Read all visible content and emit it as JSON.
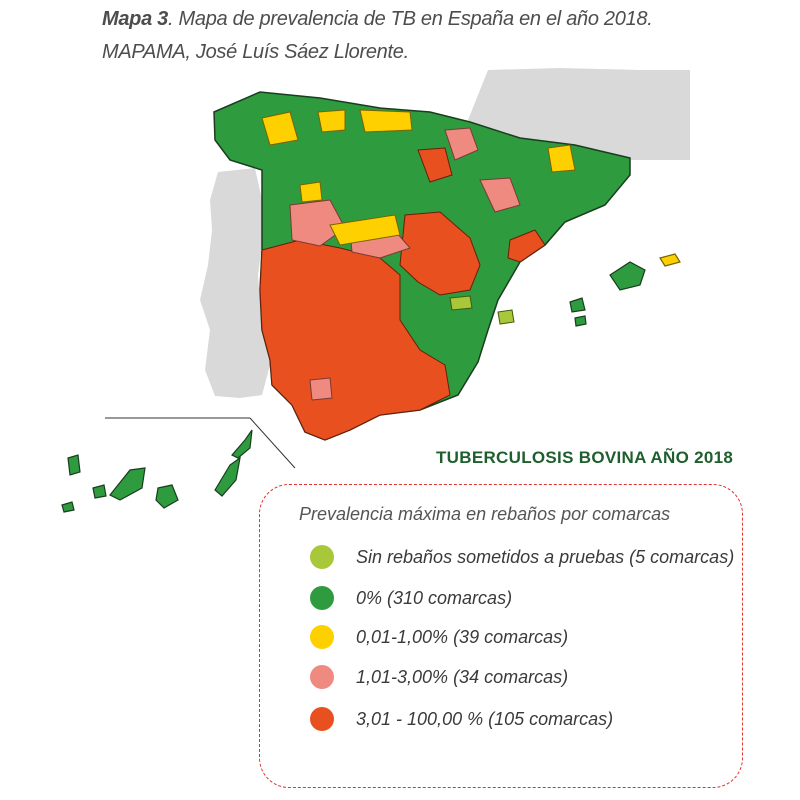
{
  "caption": {
    "label": "Mapa 3",
    "title": ". Mapa de prevalencia de TB en España en el año 2018.",
    "source": "MAPAMA, José Luís Sáez Llorente."
  },
  "map_title": "TUBERCULOSIS BOVINA AÑO 2018",
  "legend": {
    "heading": "Prevalencia máxima en rebaños por comarcas",
    "items": [
      {
        "label": "Sin rebaños sometidos a pruebas  (5 comarcas)",
        "color": "#a8c83a"
      },
      {
        "label": "0% (310 comarcas)",
        "color": "#2e9b3f"
      },
      {
        "label": "0,01-1,00% (39 comarcas)",
        "color": "#ffd000"
      },
      {
        "label": "1,01-3,00% (34 comarcas)",
        "color": "#ef8a80"
      },
      {
        "label": "3,01 - 100,00 % (105 comarcas)",
        "color": "#e8501f"
      }
    ]
  },
  "colors": {
    "sin_pruebas": "#a8c83a",
    "cero": "#2e9b3f",
    "bajo": "#ffd000",
    "medio": "#ef8a80",
    "alto": "#e8501f",
    "portugal": "#d9d9d9",
    "france": "#d9d9d9"
  }
}
